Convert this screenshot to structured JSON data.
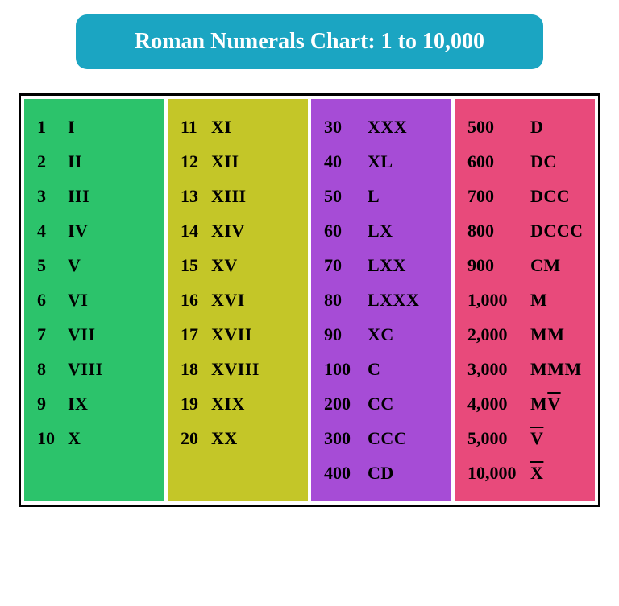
{
  "title": "Roman Numerals Chart: 1 to 10,000",
  "title_bg": "#1ba5c2",
  "title_color": "#ffffff",
  "border_color": "#000000",
  "columns": [
    {
      "bg": "#2cc36b",
      "rows": [
        {
          "n": "1",
          "r": "I"
        },
        {
          "n": "2",
          "r": "II"
        },
        {
          "n": "3",
          "r": "III"
        },
        {
          "n": "4",
          "r": "IV"
        },
        {
          "n": "5",
          "r": "V"
        },
        {
          "n": "6",
          "r": "VI"
        },
        {
          "n": "7",
          "r": "VII"
        },
        {
          "n": "8",
          "r": "VIII"
        },
        {
          "n": "9",
          "r": "IX"
        },
        {
          "n": "10",
          "r": "X"
        }
      ]
    },
    {
      "bg": "#c4c628",
      "rows": [
        {
          "n": "11",
          "r": "XI"
        },
        {
          "n": "12",
          "r": "XII"
        },
        {
          "n": "13",
          "r": "XIII"
        },
        {
          "n": "14",
          "r": "XIV"
        },
        {
          "n": "15",
          "r": "XV"
        },
        {
          "n": "16",
          "r": "XVI"
        },
        {
          "n": "17",
          "r": "XVII"
        },
        {
          "n": "18",
          "r": "XVIII"
        },
        {
          "n": "19",
          "r": "XIX"
        },
        {
          "n": "20",
          "r": "XX"
        }
      ]
    },
    {
      "bg": "#a64cd6",
      "rows": [
        {
          "n": "30",
          "r": "XXX"
        },
        {
          "n": "40",
          "r": "XL"
        },
        {
          "n": "50",
          "r": "L"
        },
        {
          "n": "60",
          "r": "LX"
        },
        {
          "n": "70",
          "r": "LXX"
        },
        {
          "n": "80",
          "r": "LXXX"
        },
        {
          "n": "90",
          "r": "XC"
        },
        {
          "n": "100",
          "r": "C"
        },
        {
          "n": "200",
          "r": "CC"
        },
        {
          "n": "300",
          "r": "CCC"
        },
        {
          "n": "400",
          "r": "CD"
        }
      ]
    },
    {
      "bg": "#e84a7b",
      "rows": [
        {
          "n": "500",
          "r": "D"
        },
        {
          "n": "600",
          "r": "DC"
        },
        {
          "n": "700",
          "r": "DCC"
        },
        {
          "n": "800",
          "r": "DCCC"
        },
        {
          "n": "900",
          "r": "CM"
        },
        {
          "n": "1,000",
          "r": "M"
        },
        {
          "n": "2,000",
          "r": "MM"
        },
        {
          "n": "3,000",
          "r": "MMM"
        },
        {
          "n": "4,000",
          "r": "M",
          "overline_suffix": "V"
        },
        {
          "n": "5,000",
          "r": "",
          "overline_suffix": "V"
        },
        {
          "n": "10,000",
          "r": "",
          "overline_suffix": "X"
        }
      ]
    }
  ]
}
